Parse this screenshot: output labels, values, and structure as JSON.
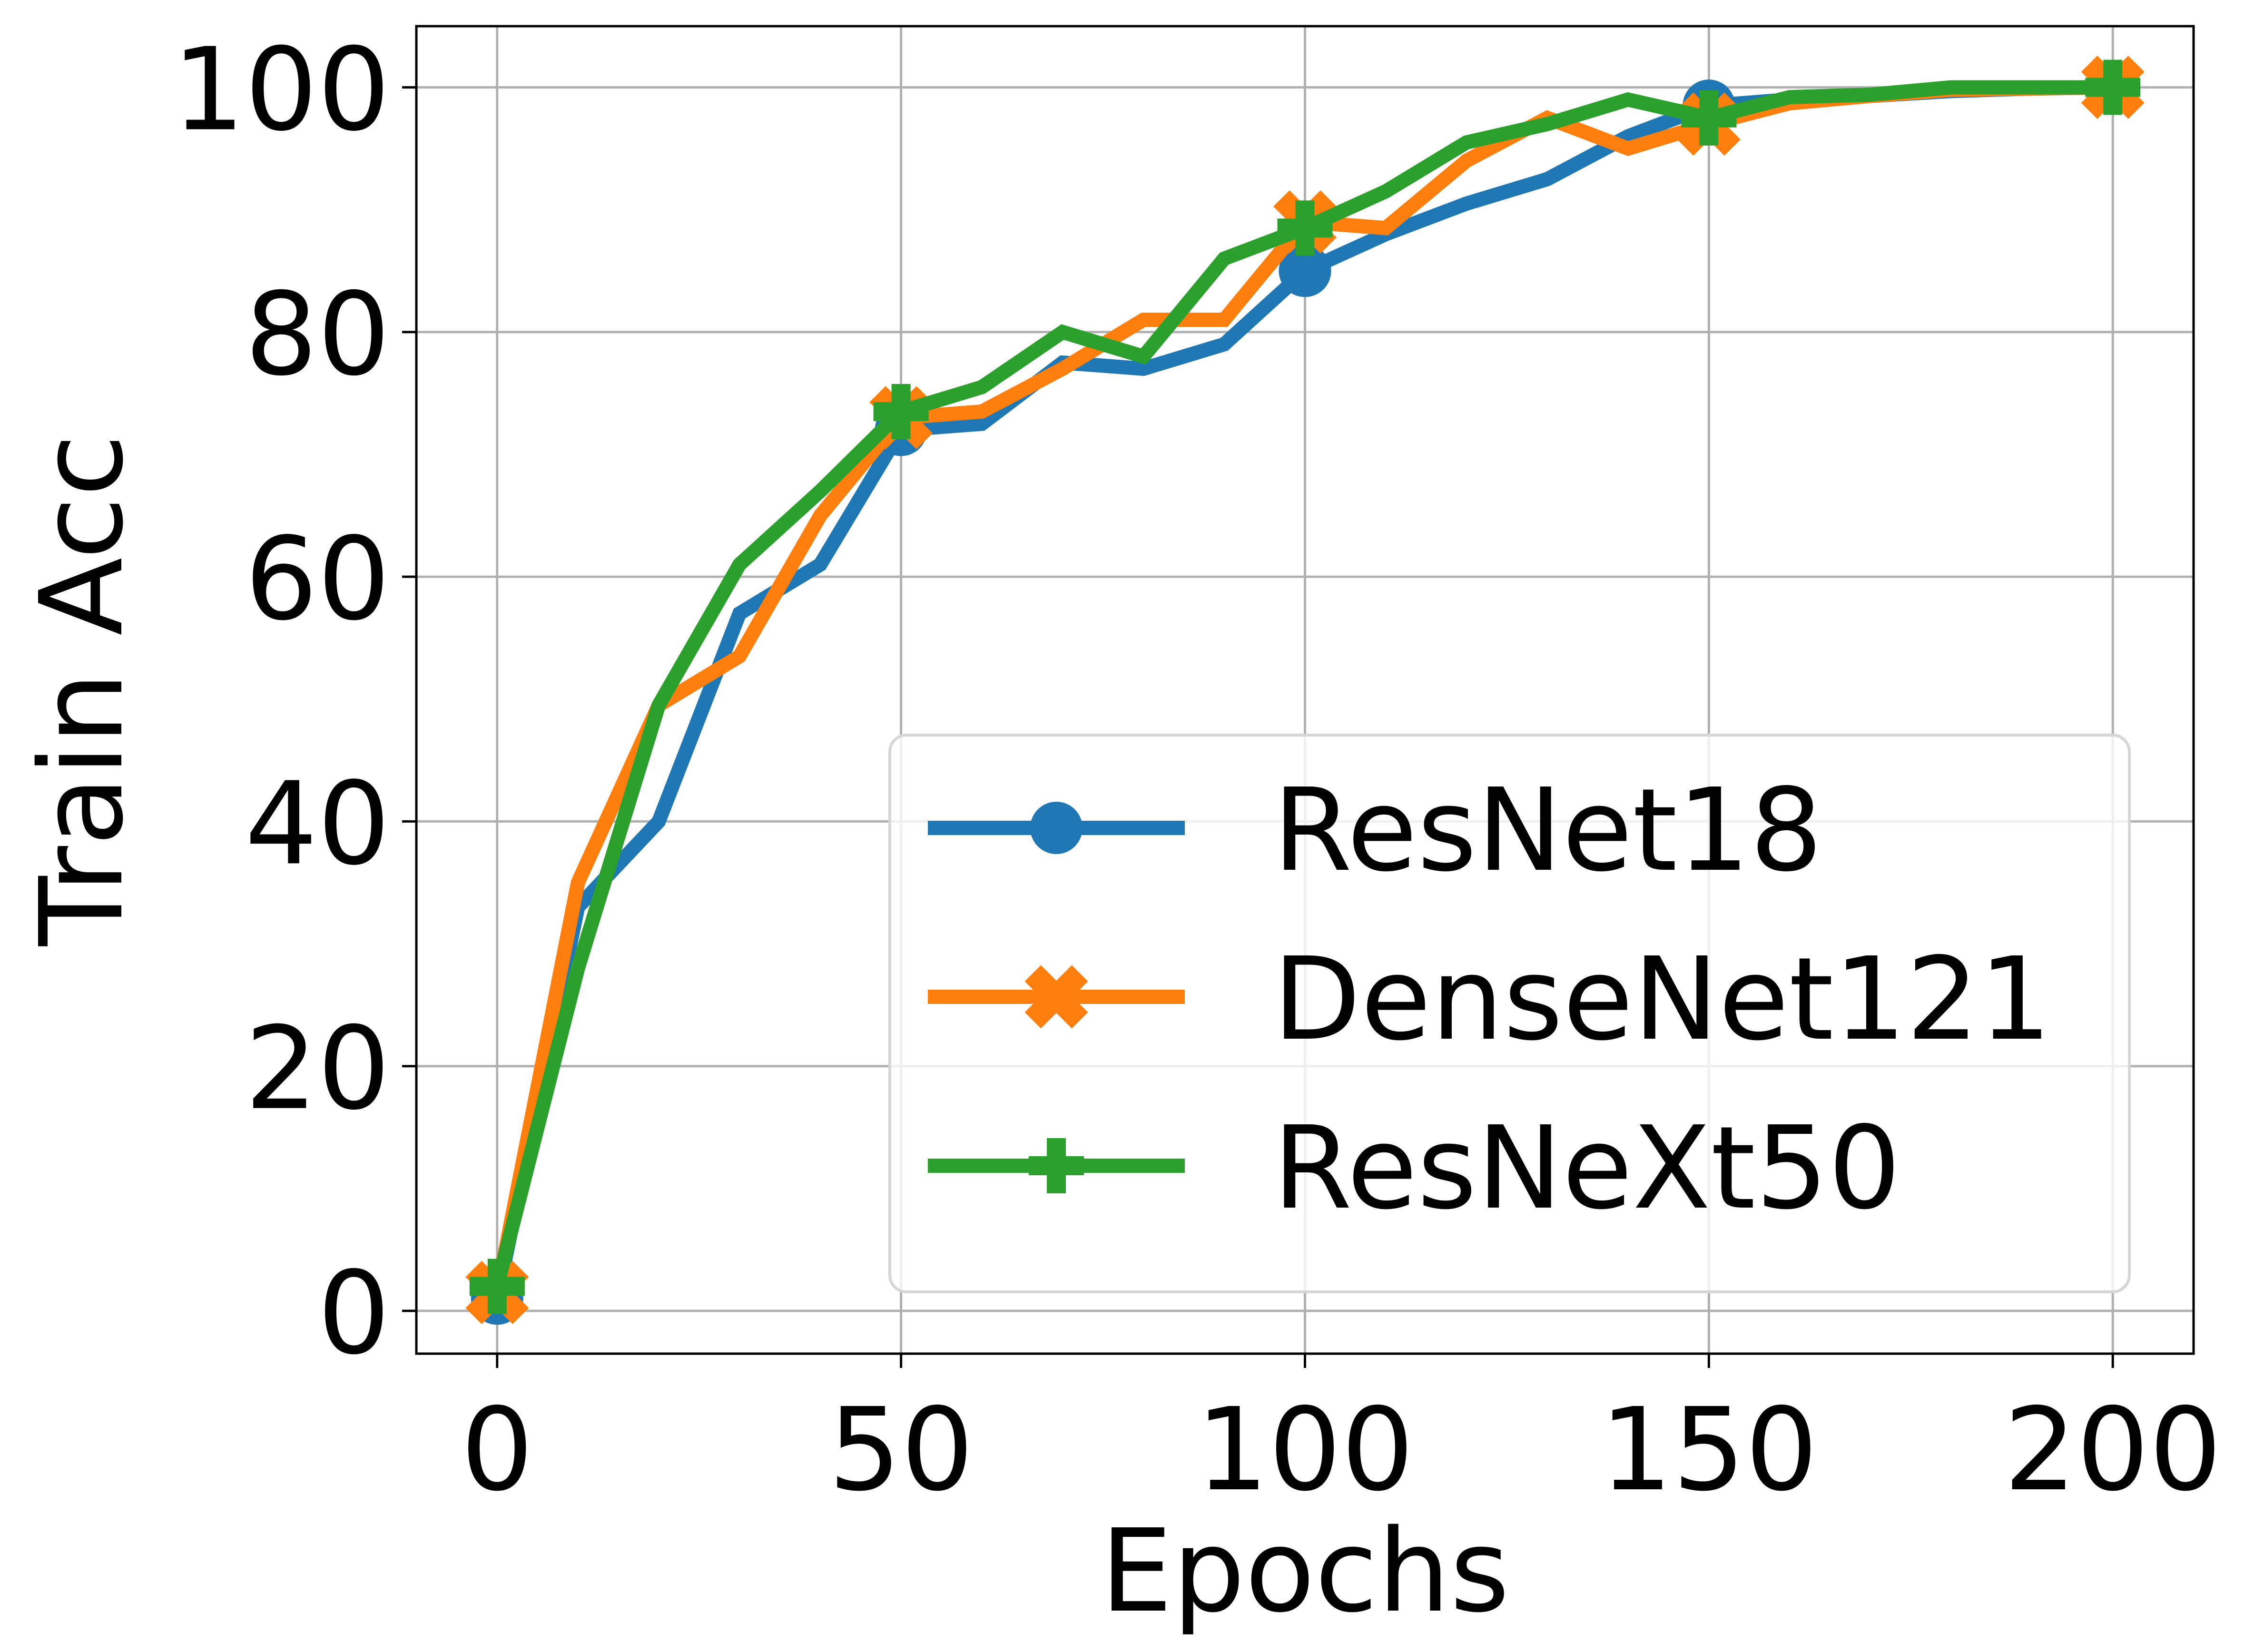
{
  "chart_data": {
    "type": "line",
    "xlabel": "Epochs",
    "ylabel": "Train Acc",
    "xlim": [
      -10,
      210
    ],
    "ylim": [
      -3.5,
      105
    ],
    "xticks": [
      0,
      50,
      100,
      150,
      200
    ],
    "yticks": [
      0,
      20,
      40,
      60,
      80,
      100
    ],
    "xtick_labels": [
      "0",
      "50",
      "100",
      "150",
      "200"
    ],
    "ytick_labels": [
      "0",
      "20",
      "40",
      "60",
      "80",
      "100"
    ],
    "grid": true,
    "legend_position": "lower-right",
    "marker_every": [
      0,
      50,
      100,
      150,
      200
    ],
    "x": [
      0,
      10,
      20,
      30,
      40,
      50,
      60,
      70,
      80,
      90,
      100,
      110,
      120,
      130,
      140,
      150,
      160,
      170,
      180,
      190,
      200
    ],
    "series": [
      {
        "name": "ResNet18",
        "color": "#1f77b4",
        "marker": "circle",
        "values": [
          1,
          33,
          40,
          57,
          61,
          72,
          72.5,
          77.5,
          77,
          79,
          85,
          88,
          90.5,
          92.5,
          96,
          98.5,
          99,
          99.3,
          99.7,
          99.9,
          100
        ]
      },
      {
        "name": "DenseNet121",
        "color": "#ff7f0e",
        "marker": "x",
        "values": [
          1.5,
          35,
          49.5,
          53.5,
          65,
          73,
          73.5,
          77,
          81,
          81,
          89,
          88.5,
          94,
          97.5,
          95,
          97,
          98.7,
          99.3,
          99.8,
          99.9,
          100
        ]
      },
      {
        "name": "ResNeXt50",
        "color": "#2ca02c",
        "marker": "plus",
        "values": [
          2,
          28,
          49.5,
          61,
          67,
          73.5,
          75.5,
          80,
          78,
          86,
          88.5,
          91.5,
          95.5,
          97,
          99,
          97.5,
          99.2,
          99.4,
          100,
          100,
          100
        ]
      }
    ]
  }
}
